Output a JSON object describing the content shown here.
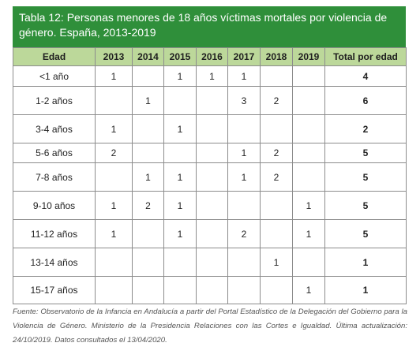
{
  "table": {
    "title": "Tabla 12: Personas menores de 18 años víctimas mortales por violencia de género. España, 2013-2019",
    "headers": [
      "Edad",
      "2013",
      "2014",
      "2015",
      "2016",
      "2017",
      "2018",
      "2019",
      "Total por edad"
    ],
    "rows": [
      [
        "<1 año",
        "1",
        "",
        "1",
        "1",
        "1",
        "",
        "",
        "4"
      ],
      [
        "1-2 años",
        "",
        "1",
        "",
        "",
        "3",
        "2",
        "",
        "6"
      ],
      [
        "3-4 años",
        "1",
        "",
        "1",
        "",
        "",
        "",
        "",
        "2"
      ],
      [
        "5-6 años",
        "2",
        "",
        "",
        "",
        "1",
        "2",
        "",
        "5"
      ],
      [
        "7-8 años",
        "",
        "1",
        "1",
        "",
        "1",
        "2",
        "",
        "5"
      ],
      [
        "9-10 años",
        "1",
        "2",
        "1",
        "",
        "",
        "",
        "1",
        "5"
      ],
      [
        "11-12 años",
        "1",
        "",
        "1",
        "",
        "2",
        "",
        "1",
        "5"
      ],
      [
        "13-14 años",
        "",
        "",
        "",
        "",
        "",
        "1",
        "",
        "1"
      ],
      [
        "15-17 años",
        "",
        "",
        "",
        "",
        "",
        "",
        "1",
        "1"
      ]
    ]
  },
  "source": "Fuente: Observatorio de la Infancia en Andalucía a partir del Portal Estadístico de la Delegación del Gobierno para la Violencia de Género. Ministerio de la Presidencia Relaciones con las Cortes e Igualdad. Última actualización: 24/10/2019. Datos consultados el 13/04/2020.",
  "colors": {
    "title_bg": "#2f8f3a",
    "header_bg": "#bcd89a"
  }
}
